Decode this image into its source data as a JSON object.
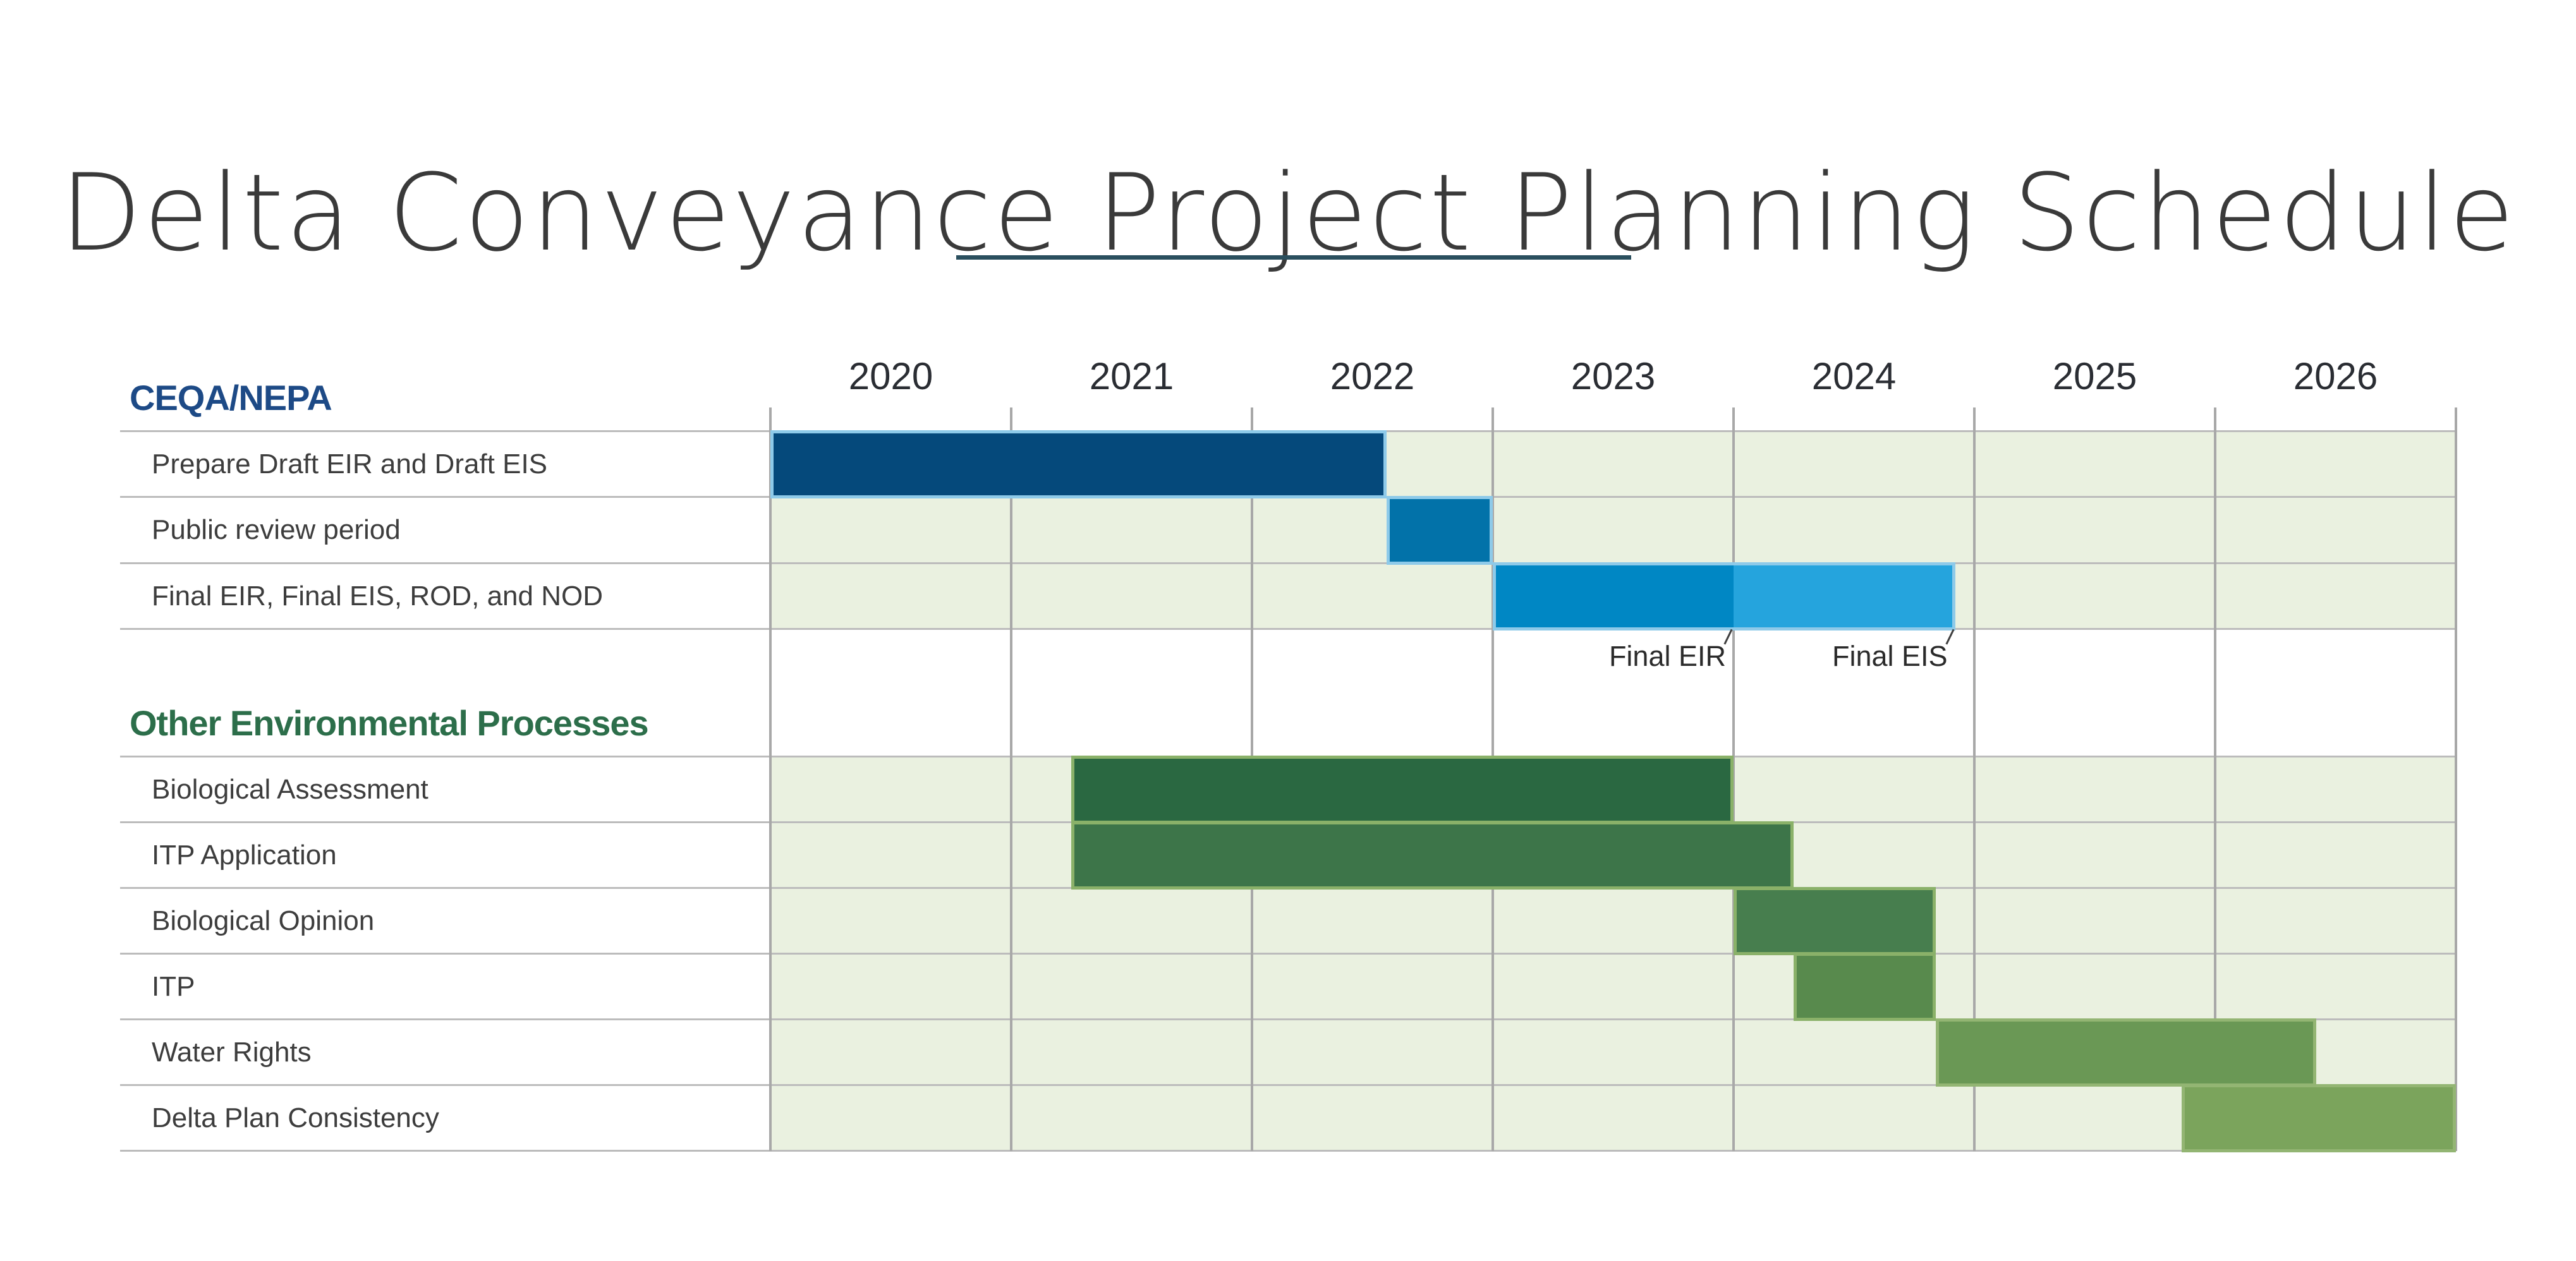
{
  "page": {
    "title": "Delta Conveyance Project Planning Schedule"
  },
  "chart_data": {
    "type": "gantt",
    "title": "Delta Conveyance Project Planning Schedule",
    "x_axis": {
      "tick_labels": [
        "2020",
        "2021",
        "2022",
        "2023",
        "2024",
        "2025",
        "2026"
      ],
      "range_years": [
        2020,
        2027
      ],
      "grid": true
    },
    "legend": "none",
    "sections": [
      {
        "name": "CEQA/NEPA",
        "header_color": "#1d4a86",
        "rows": [
          {
            "label": "Prepare Draft EIR and Draft EIS",
            "bars": [
              {
                "start": 2020.0,
                "end": 2022.56,
                "fill": "#05497b",
                "outline": "#8ecae9"
              }
            ]
          },
          {
            "label": "Public review period",
            "bars": [
              {
                "start": 2022.56,
                "end": 2023.0,
                "fill": "#0272a9",
                "outline": "#8ecae9"
              }
            ]
          },
          {
            "label": "Final EIR, Final EIS, ROD, and NOD",
            "bars": [
              {
                "start": 2023.0,
                "end": 2024.0,
                "fill": "#0087c4",
                "outline": "#8ecae9",
                "open_side": "right"
              },
              {
                "start": 2024.0,
                "end": 2024.92,
                "fill": "#25a4dd",
                "outline": "#8ecae9",
                "open_side": "left"
              }
            ],
            "callouts": [
              {
                "label": "Final EIR",
                "x": 2024.0
              },
              {
                "label": "Final EIS",
                "x": 2024.92
              }
            ]
          }
        ]
      },
      {
        "name": "Other Environmental Processes",
        "header_color": "#2c6e4a",
        "rows": [
          {
            "label": "Biological Assessment",
            "bars": [
              {
                "start": 2021.25,
                "end": 2024.0,
                "fill": "#2a6841",
                "outline": "#8ab169"
              }
            ]
          },
          {
            "label": "ITP Application",
            "bars": [
              {
                "start": 2021.25,
                "end": 2024.25,
                "fill": "#3d7549",
                "outline": "#8ab169"
              }
            ]
          },
          {
            "label": "Biological Opinion",
            "bars": [
              {
                "start": 2024.0,
                "end": 2024.84,
                "fill": "#477e4e",
                "outline": "#8ab169"
              }
            ]
          },
          {
            "label": "ITP",
            "bars": [
              {
                "start": 2024.25,
                "end": 2024.84,
                "fill": "#588a4d",
                "outline": "#8ab169"
              }
            ]
          },
          {
            "label": "Water Rights",
            "bars": [
              {
                "start": 2024.84,
                "end": 2026.42,
                "fill": "#6a9855",
                "outline": "#93b573"
              }
            ]
          },
          {
            "label": "Delta Plan Consistency",
            "bars": [
              {
                "start": 2025.86,
                "end": 2027.0,
                "fill": "#7ba45c",
                "outline": "#93b573"
              }
            ]
          }
        ]
      }
    ],
    "colors": {
      "cell_bg": "#eaf1e0",
      "grid_vertical": "#a8a8a8",
      "grid_horizontal": "#bcbcbc",
      "title": "#3a3a3a",
      "title_underline": "#2a4f5e",
      "year_label": "#2a2d33",
      "row_label": "#3d3d3d",
      "callout_text": "#2b2b2b"
    }
  }
}
